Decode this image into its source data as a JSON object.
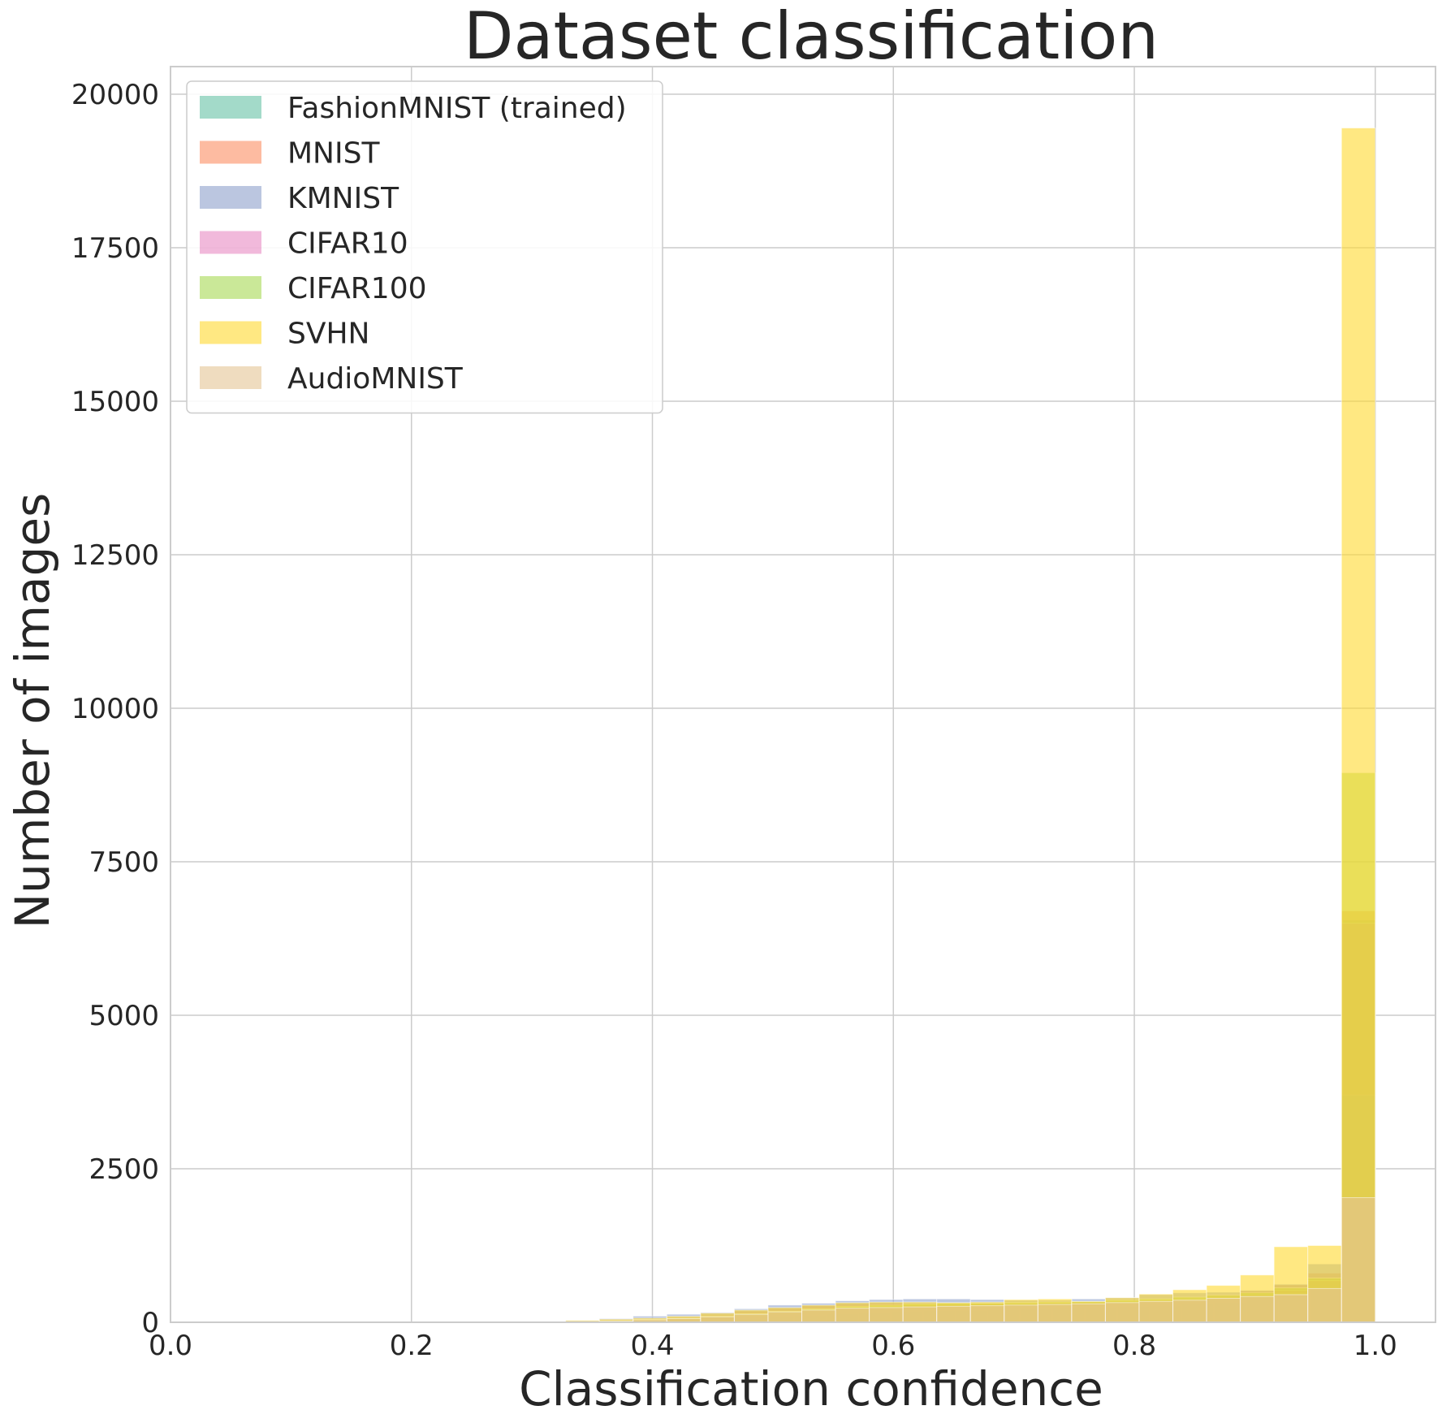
{
  "chart_data": {
    "type": "bar",
    "title": "Dataset classification",
    "xlabel": "Classification confidence",
    "ylabel": "Number of images",
    "xlim": [
      0.0,
      1.05
    ],
    "ylim": [
      0,
      20450
    ],
    "xticks": [
      0.0,
      0.2,
      0.4,
      0.6,
      0.8,
      1.0
    ],
    "xtick_labels": [
      "0.0",
      "0.2",
      "0.4",
      "0.6",
      "0.8",
      "1.0"
    ],
    "yticks": [
      0,
      2500,
      5000,
      7500,
      10000,
      12500,
      15000,
      17500,
      20000
    ],
    "ytick_labels": [
      "0",
      "2500",
      "5000",
      "7500",
      "10000",
      "12500",
      "15000",
      "17500",
      "20000"
    ],
    "grid": true,
    "legend_position": "top-left",
    "bins": 25,
    "series": [
      {
        "name": "FashionMNIST (trained)",
        "color": "#66c2a5",
        "range": [
          0.33,
          1.0
        ],
        "values": [
          0,
          0,
          10,
          20,
          40,
          60,
          90,
          120,
          150,
          170,
          180,
          190,
          200,
          210,
          220,
          230,
          240,
          260,
          280,
          300,
          330,
          380,
          440,
          560,
          6550
        ]
      },
      {
        "name": "MNIST",
        "color": "#fc8d62",
        "range": [
          0.3,
          1.0
        ],
        "values": [
          5,
          15,
          30,
          50,
          80,
          120,
          180,
          230,
          270,
          300,
          310,
          310,
          310,
          300,
          300,
          300,
          310,
          320,
          350,
          390,
          440,
          510,
          610,
          800,
          6700
        ]
      },
      {
        "name": "KMNIST",
        "color": "#8da0cb",
        "range": [
          0.3,
          1.0
        ],
        "values": [
          10,
          30,
          60,
          100,
          130,
          160,
          220,
          280,
          310,
          350,
          370,
          380,
          380,
          370,
          360,
          360,
          380,
          400,
          450,
          480,
          490,
          520,
          620,
          950,
          3700
        ]
      },
      {
        "name": "CIFAR10",
        "color": "#e78ac3",
        "range": [
          0.3,
          1.0
        ],
        "values": [
          5,
          10,
          20,
          40,
          60,
          90,
          120,
          160,
          200,
          240,
          260,
          280,
          290,
          300,
          310,
          320,
          330,
          340,
          360,
          380,
          410,
          450,
          520,
          680,
          6500
        ]
      },
      {
        "name": "CIFAR100",
        "color": "#a6d854",
        "range": [
          0.3,
          1.0
        ],
        "values": [
          5,
          10,
          25,
          45,
          70,
          100,
          140,
          180,
          220,
          260,
          280,
          300,
          310,
          310,
          320,
          330,
          340,
          360,
          380,
          410,
          440,
          480,
          560,
          720,
          8950
        ]
      },
      {
        "name": "SVHN",
        "color": "#ffd92f",
        "range": [
          0.3,
          1.0
        ],
        "values": [
          10,
          30,
          50,
          70,
          100,
          150,
          200,
          240,
          280,
          320,
          330,
          330,
          320,
          330,
          370,
          380,
          340,
          400,
          460,
          530,
          600,
          770,
          1230,
          1250,
          19450
        ]
      },
      {
        "name": "AudioMNIST",
        "color": "#e5c494",
        "range": [
          0.3,
          1.0
        ],
        "values": [
          5,
          10,
          20,
          40,
          60,
          90,
          130,
          170,
          200,
          230,
          240,
          250,
          260,
          270,
          280,
          290,
          300,
          320,
          340,
          360,
          390,
          420,
          450,
          550,
          2030
        ]
      }
    ]
  }
}
